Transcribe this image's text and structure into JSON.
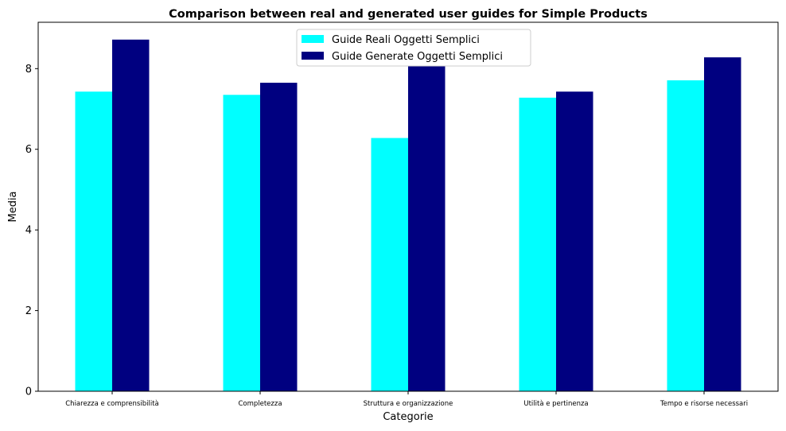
{
  "chart_data": {
    "type": "bar",
    "title": "Comparison between real and generated user guides for Simple Products",
    "xlabel": "Categorie",
    "ylabel": "Media",
    "categories": [
      "Chiarezza e comprensibilità",
      "Completezza",
      "Struttura e organizzazione",
      "Utilità e pertinenza",
      "Tempo e risorse necessari"
    ],
    "series": [
      {
        "name": "Guide Reali Oggetti Semplici",
        "color": "#00ffff",
        "values": [
          7.43,
          7.35,
          6.28,
          7.28,
          7.71
        ]
      },
      {
        "name": "Guide Generate Oggetti Semplici",
        "color": "#000080",
        "values": [
          8.72,
          7.65,
          8.06,
          7.43,
          8.28
        ]
      }
    ],
    "ylim": [
      0,
      9.15
    ],
    "yticks": [
      0,
      2,
      4,
      6,
      8
    ],
    "grid": false,
    "legend_position": "top-center"
  }
}
